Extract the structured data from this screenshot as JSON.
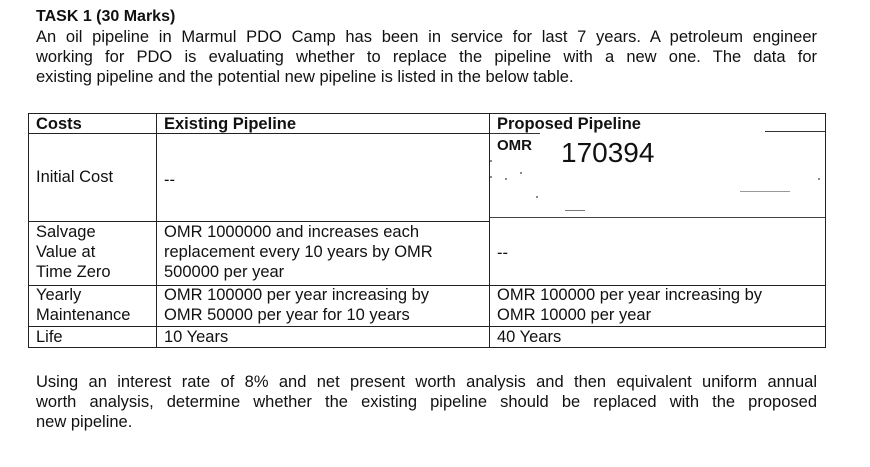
{
  "task": {
    "title": "TASK 1 (30 Marks)",
    "intro_lines": [
      "An oil pipeline in Marmul PDO Camp has been in service for last 7 years. A petroleum engineer",
      "working for PDO is evaluating whether to replace the pipeline with a new one. The data for",
      "existing pipeline and the potential new pipeline is listed in the below table."
    ]
  },
  "table": {
    "headers": {
      "costs": "Costs",
      "existing": "Existing Pipeline",
      "proposed": "Proposed Pipeline"
    },
    "rows": {
      "initial_cost": {
        "label": "Initial Cost",
        "existing": "--",
        "proposed_prefix": "OMR",
        "proposed_value": "170394"
      },
      "salvage": {
        "label_lines": [
          "Salvage",
          "Value at",
          "Time Zero"
        ],
        "existing_lines": [
          "OMR 1000000 and increases each",
          "replacement every 10 years by OMR",
          "500000 per year"
        ],
        "proposed": "--"
      },
      "maintenance": {
        "label_lines": [
          "Yearly",
          "Maintenance"
        ],
        "existing_lines": [
          "OMR 100000 per year increasing by",
          "OMR 50000 per year for 10 years"
        ],
        "proposed_lines": [
          "OMR 100000 per year increasing by",
          "OMR 10000 per year"
        ]
      },
      "life": {
        "label": "Life",
        "existing": "10 Years",
        "proposed": "40 Years"
      }
    }
  },
  "conclusion_lines": [
    "Using an interest rate of 8% and net present worth analysis and then equivalent uniform annual",
    "worth analysis, determine whether the existing pipeline should be replaced with the proposed",
    "new pipeline."
  ]
}
